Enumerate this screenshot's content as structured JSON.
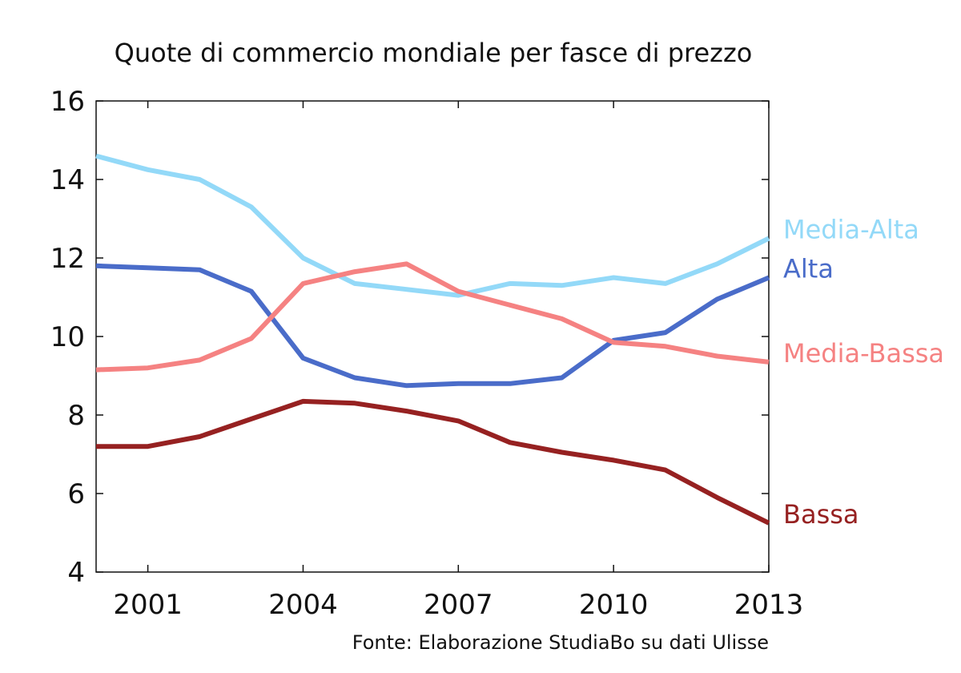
{
  "chart_data": {
    "type": "line",
    "title": "Quote di commercio mondiale per fasce di prezzo",
    "source": "Fonte: Elaborazione StudiaBo su dati Ulisse",
    "xlabel": "",
    "ylabel": "",
    "x": [
      2000,
      2001,
      2002,
      2003,
      2004,
      2005,
      2006,
      2007,
      2008,
      2009,
      2010,
      2011,
      2012,
      2013
    ],
    "xlim": [
      2000,
      2013
    ],
    "ylim": [
      4,
      16
    ],
    "xticks": [
      2001,
      2004,
      2007,
      2010,
      2013
    ],
    "xtick_labels": [
      "2001",
      "2004",
      "2007",
      "2010",
      "2013"
    ],
    "yticks": [
      4,
      6,
      8,
      10,
      12,
      14,
      16
    ],
    "ytick_labels": [
      "4",
      "6",
      "8",
      "10",
      "12",
      "14",
      "16"
    ],
    "grid": false,
    "legend": "end-of-line labels",
    "series": [
      {
        "name": "Media-Alta",
        "color": "#93d9f8",
        "values": [
          14.6,
          14.25,
          14.0,
          13.3,
          12.0,
          11.35,
          11.2,
          11.05,
          11.35,
          11.3,
          11.5,
          11.35,
          11.85,
          12.5
        ]
      },
      {
        "name": "Alta",
        "color": "#4a6cc9",
        "values": [
          11.8,
          11.75,
          11.7,
          11.15,
          9.45,
          8.95,
          8.75,
          8.8,
          8.8,
          8.95,
          9.9,
          10.1,
          10.95,
          11.5
        ]
      },
      {
        "name": "Media-Bassa",
        "color": "#f58282",
        "values": [
          9.15,
          9.2,
          9.4,
          9.95,
          11.35,
          11.65,
          11.85,
          11.15,
          10.8,
          10.45,
          9.85,
          9.75,
          9.5,
          9.35
        ]
      },
      {
        "name": "Bassa",
        "color": "#962121",
        "values": [
          7.2,
          7.2,
          7.45,
          7.9,
          8.35,
          8.3,
          8.1,
          7.85,
          7.3,
          7.05,
          6.85,
          6.6,
          5.9,
          5.25
        ]
      }
    ]
  }
}
